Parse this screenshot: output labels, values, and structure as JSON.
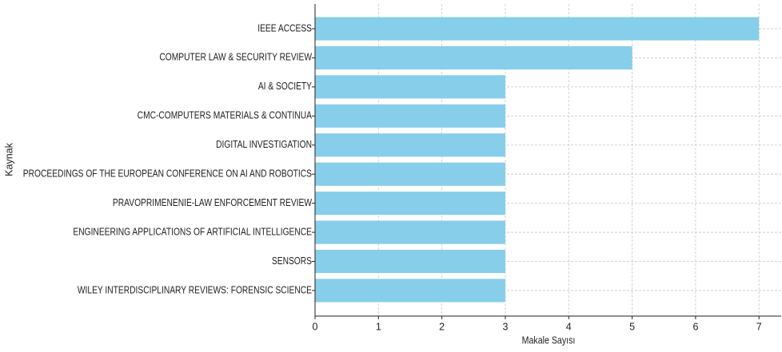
{
  "chart_data": {
    "type": "barh",
    "categories": [
      "IEEE ACCESS",
      "COMPUTER LAW & SECURITY REVIEW",
      "AI & SOCIETY",
      "CMC-COMPUTERS MATERIALS & CONTINUA",
      "DIGITAL INVESTIGATION",
      "PROCEEDINGS OF THE EUROPEAN CONFERENCE ON AI AND ROBOTICS",
      "PRAVOPRIMENENIE-LAW ENFORCEMENT REVIEW",
      "ENGINEERING APPLICATIONS OF ARTIFICIAL INTELLIGENCE",
      "SENSORS",
      "WILEY INTERDISCIPLINARY REVIEWS: FORENSIC SCIENCE"
    ],
    "values": [
      7,
      5,
      3,
      3,
      3,
      3,
      3,
      3,
      3,
      3
    ],
    "color": "#87ceeb",
    "xlabel": "Makale Sayısı",
    "ylabel": "Kaynak",
    "xlim": [
      0,
      7.35
    ],
    "xticks": [
      0,
      1,
      2,
      3,
      4,
      5,
      6,
      7
    ],
    "grid": true
  }
}
